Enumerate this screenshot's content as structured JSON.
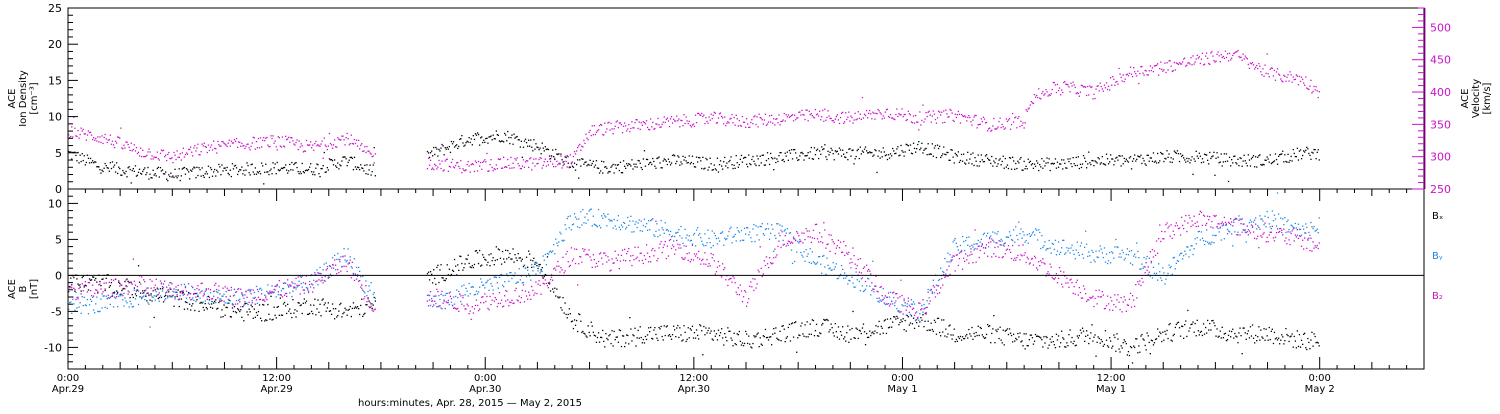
{
  "chart_data": [
    {
      "type": "scatter",
      "panel": "top",
      "ylabel_left": [
        "ACE",
        "Ion Density",
        "[cm⁻³]"
      ],
      "ylabel_right": [
        "ACE",
        "Velocity",
        "[km/s]"
      ],
      "ylim_left": [
        0,
        25
      ],
      "yticks_left": [
        "0",
        "5",
        "10",
        "15",
        "20",
        "25"
      ],
      "ylim_right": [
        250,
        530
      ],
      "yticks_right": [
        "250",
        "300",
        "350",
        "400",
        "450",
        "500"
      ],
      "series": [
        {
          "color": "#000000",
          "axis": "left",
          "x": [
            0,
            2,
            4,
            6,
            8,
            10,
            12,
            14,
            16,
            17.5,
            21,
            23,
            25,
            27,
            29,
            31,
            33,
            35,
            37,
            39,
            41,
            43,
            45,
            47,
            49,
            51,
            53,
            55,
            57,
            59,
            61,
            63,
            65,
            67,
            69,
            71,
            72
          ],
          "y": [
            5,
            3,
            2.5,
            2,
            2.5,
            2.8,
            3,
            2.8,
            4,
            2.5,
            5,
            7,
            7.5,
            6,
            3.5,
            3,
            3.5,
            4,
            3.5,
            4,
            4.5,
            5,
            5,
            5,
            6,
            4.5,
            4,
            3.5,
            3.5,
            4,
            4,
            4.5,
            4.5,
            4,
            4,
            5,
            5
          ]
        },
        {
          "color": "#cc11cc",
          "axis": "right",
          "x": [
            0,
            2,
            4,
            6,
            8,
            10,
            12,
            14,
            16,
            17.5,
            21,
            23,
            25,
            27,
            29,
            30,
            31,
            33,
            35,
            37,
            39,
            41,
            43,
            45,
            47,
            49,
            51,
            53,
            55,
            55.3,
            57,
            59,
            61,
            63,
            65,
            67,
            69,
            71,
            72
          ],
          "y": [
            340,
            330,
            310,
            300,
            315,
            320,
            325,
            315,
            330,
            300,
            290,
            285,
            290,
            290,
            295,
            340,
            345,
            350,
            355,
            360,
            355,
            360,
            365,
            360,
            370,
            360,
            365,
            350,
            355,
            390,
            410,
            400,
            430,
            440,
            450,
            460,
            430,
            420,
            400
          ]
        }
      ]
    },
    {
      "type": "scatter",
      "panel": "bottom",
      "ylabel_left": [
        "ACE",
        "B",
        "[nT]"
      ],
      "ylim": [
        -13,
        12
      ],
      "yticks": [
        "-10",
        "-5",
        "0",
        "5",
        "10"
      ],
      "zero_line": true,
      "legend": [
        "Bₓ",
        "Bᵧ",
        "B₂"
      ],
      "legend_position": "right",
      "series": [
        {
          "name": "Bₓ",
          "color": "#000000",
          "x": [
            0,
            2,
            4,
            6,
            8,
            10,
            12,
            14,
            16,
            17.5,
            21,
            23,
            25,
            27,
            29,
            31,
            33,
            35,
            37,
            39,
            41,
            43,
            45,
            47,
            49,
            51,
            53,
            55,
            57,
            59,
            61,
            63,
            65,
            67,
            69,
            71,
            72
          ],
          "y": [
            -1,
            -1,
            -2,
            -3,
            -4,
            -5,
            -5,
            -4,
            -5,
            -4,
            0,
            2,
            3,
            2,
            -6,
            -9,
            -8,
            -8,
            -8,
            -9,
            -8,
            -7,
            -8,
            -7,
            -6,
            -8,
            -8,
            -9,
            -9,
            -8,
            -10,
            -8,
            -7,
            -8,
            -8,
            -9,
            -9
          ]
        },
        {
          "name": "Bᵧ",
          "color": "#1e88e5",
          "x": [
            0,
            2,
            4,
            6,
            8,
            10,
            12,
            14,
            16,
            17.5,
            21,
            23,
            25,
            27,
            29,
            31,
            33,
            35,
            37,
            39,
            41,
            43,
            45,
            47,
            49,
            51,
            53,
            55,
            57,
            59,
            61,
            63,
            65,
            67,
            69,
            71,
            72
          ],
          "y": [
            -4,
            -4,
            -3,
            -2,
            -3,
            -3,
            -2,
            -1,
            3,
            -3,
            -4,
            -2,
            -1,
            1,
            8,
            8,
            7,
            6,
            5,
            6,
            6,
            2,
            0,
            -3,
            -5,
            4,
            5,
            6,
            4,
            3,
            3,
            0,
            5,
            7,
            8,
            6,
            7
          ]
        },
        {
          "name": "B₂",
          "color": "#cc11cc",
          "x": [
            0,
            2,
            4,
            6,
            8,
            10,
            12,
            14,
            16,
            17.5,
            21,
            23,
            25,
            27,
            29,
            31,
            33,
            35,
            37,
            39,
            41,
            43,
            45,
            47,
            49,
            51,
            53,
            55,
            57,
            59,
            61,
            63,
            65,
            67,
            69,
            71,
            72
          ],
          "y": [
            -2,
            -2,
            -1,
            -2,
            -2,
            -3,
            -2,
            -1,
            2,
            -4,
            -3,
            -4,
            -3,
            -2,
            3,
            2,
            3,
            4,
            2,
            -3,
            5,
            6,
            3,
            -3,
            -5,
            2,
            4,
            3,
            0,
            -3,
            -4,
            6,
            8,
            7,
            6,
            5,
            4
          ]
        }
      ]
    }
  ],
  "x_axis": {
    "range_hours": [
      0,
      78
    ],
    "ticks": [
      {
        "h": 0,
        "time": "0:00",
        "date": "Apr.29"
      },
      {
        "h": 12,
        "time": "12:00",
        "date": "Apr.29"
      },
      {
        "h": 24,
        "time": "0:00",
        "date": "Apr.30"
      },
      {
        "h": 36,
        "time": "12:00",
        "date": "Apr.30"
      },
      {
        "h": 48,
        "time": "0:00",
        "date": "May 1"
      },
      {
        "h": 60,
        "time": "12:00",
        "date": "May 1"
      },
      {
        "h": 72,
        "time": "0:00",
        "date": "May 2"
      }
    ],
    "label": "hours:minutes, Apr. 28, 2015 — May  2, 2015"
  }
}
